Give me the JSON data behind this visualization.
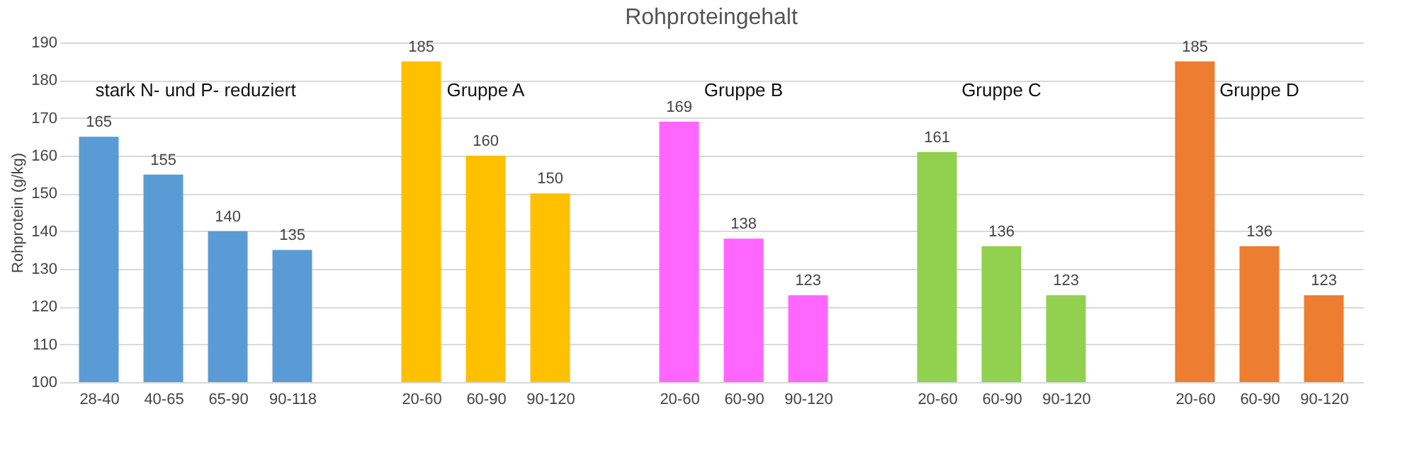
{
  "chart_data": {
    "type": "bar",
    "title": "Rohproteingehalt",
    "ylabel": "Rohprotein (g/kg)",
    "categories": [
      "28-40",
      "40-65",
      "65-90",
      "90-118",
      null,
      "20-60",
      "60-90",
      "90-120",
      null,
      "20-60",
      "60-90",
      "90-120",
      null,
      "20-60",
      "60-90",
      "90-120",
      null,
      "20-60",
      "60-90",
      "90-120"
    ],
    "values": [
      165,
      155,
      140,
      135,
      null,
      185,
      160,
      150,
      null,
      169,
      138,
      123,
      null,
      161,
      136,
      123,
      null,
      185,
      136,
      123
    ],
    "colors": [
      "#5b9bd5",
      "#5b9bd5",
      "#5b9bd5",
      "#5b9bd5",
      null,
      "#ffc000",
      "#ffc000",
      "#ffc000",
      null,
      "#ff66ff",
      "#ff66ff",
      "#ff66ff",
      null,
      "#92d050",
      "#92d050",
      "#92d050",
      null,
      "#ed7d31",
      "#ed7d31",
      "#ed7d31"
    ],
    "ylim": [
      100,
      190
    ],
    "yticks": [
      100,
      110,
      120,
      130,
      140,
      150,
      160,
      170,
      180,
      190
    ],
    "grid": "y",
    "data_labels": true,
    "annotations": [
      "stark N- und P- reduziert",
      "Gruppe A",
      "Gruppe B",
      "Gruppe C",
      "Gruppe D"
    ]
  }
}
